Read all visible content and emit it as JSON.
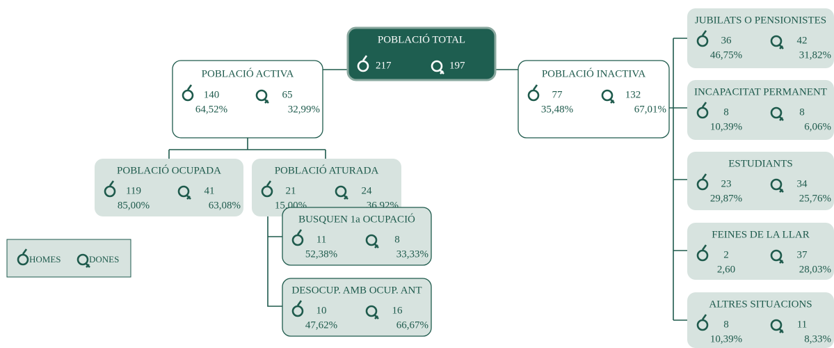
{
  "nodes": [
    {
      "label": "POBLACIÓ TOTAL",
      "men": 217,
      "women": 197
    },
    {
      "label": "POBLACIÓ ACTIVA",
      "men": 140,
      "men_pct": "64,52%",
      "women": 65,
      "women_pct": "32,99%"
    },
    {
      "label": "POBLACIÓ INACTIVA",
      "men": 77,
      "men_pct": "35,48%",
      "women": 132,
      "women_pct": "67,01%"
    },
    {
      "label": "POBLACIÓ OCUPADA",
      "men": 119,
      "men_pct": "85,00%",
      "women": 41,
      "women_pct": "63,08%"
    },
    {
      "label": "POBLACIÓ ATURADA",
      "men": 21,
      "men_pct": "15,00%",
      "women": 24,
      "women_pct": "36,92%"
    },
    {
      "label": "BUSQUEN 1a OCUPACIÓ",
      "men": 11,
      "men_pct": "52,38%",
      "women": 8,
      "women_pct": "33,33%"
    },
    {
      "label": "DESOCUP. AMB OCUP. ANT",
      "men": 10,
      "men_pct": "47,62%",
      "women": 16,
      "women_pct": "66,67%"
    },
    {
      "label": "JUBILATS O PENSIONISTES",
      "men": 36,
      "men_pct": "46,75%",
      "women": 42,
      "women_pct": "31,82%"
    },
    {
      "label": "INCAPACITAT PERMANENT",
      "men": 8,
      "men_pct": "10,39%",
      "women": 8,
      "women_pct": "6,06%"
    },
    {
      "label": "ESTUDIANTS",
      "men": 23,
      "men_pct": "29,87%",
      "women": 34,
      "women_pct": "25,76%"
    },
    {
      "label": "FEINES DE LA LLAR",
      "men": 2,
      "men_pct": "2,60",
      "women": 37,
      "women_pct": "28,03%"
    },
    {
      "label": "ALTRES SITUACIONS",
      "men": 8,
      "men_pct": "10,39%",
      "women": 11,
      "women_pct": "8,33%"
    }
  ],
  "legend": {
    "men": "HOMES",
    "women": "DONES"
  }
}
